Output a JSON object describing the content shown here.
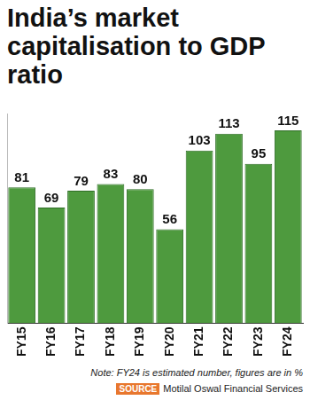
{
  "chart_data": {
    "type": "bar",
    "title": "India’s market capitalisation to GDP ratio",
    "categories": [
      "FY15",
      "FY16",
      "FY17",
      "FY18",
      "FY19",
      "FY20",
      "FY21",
      "FY22",
      "FY23",
      "FY24"
    ],
    "values": [
      81,
      69,
      79,
      83,
      80,
      56,
      103,
      113,
      95,
      115
    ],
    "color": "#4e9a3e",
    "ylim": [
      0,
      125
    ],
    "grid": false,
    "data_labels": true,
    "tick_labels": "x",
    "note": "Note: FY24 is estimated number, figures are in %",
    "source_label": "SOURCE",
    "source": "Motilal Oswal Financial Services"
  }
}
